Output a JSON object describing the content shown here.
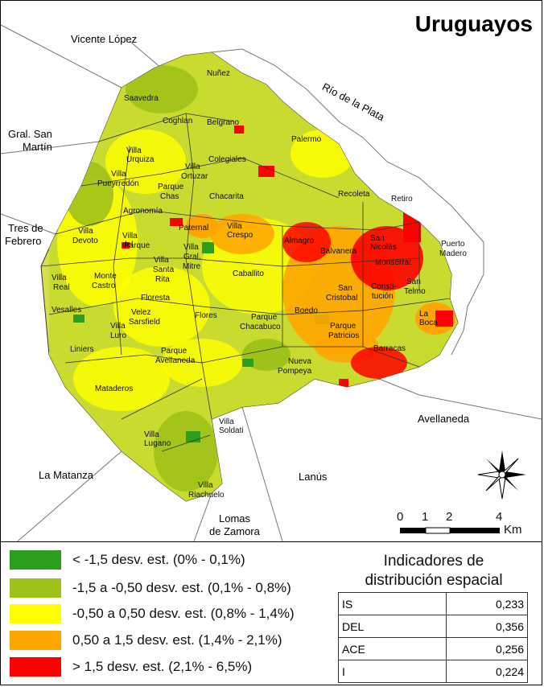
{
  "map": {
    "title": "Uruguayos",
    "neighbors": {
      "vicente_lopez": "Vicente López",
      "rio_plata": "Río de la Plata",
      "gral_san_martin_1": "Gral. San",
      "gral_san_martin_2": "Martín",
      "tres_febrero_1": "Tres de",
      "tres_febrero_2": "Febrero",
      "la_matanza": "La Matanza",
      "lanus": "Lanús",
      "avellaneda": "Avellaneda",
      "lomas_1": "Lomas",
      "lomas_2": "de Zamora"
    },
    "barrios": {
      "nunez": "Nuñez",
      "saavedra": "Saavedra",
      "coghlan": "Coghlan",
      "belgrano": "Belgrano",
      "villa_urquiza": "Villa Urquiza",
      "palermo": "Palermo",
      "villa_pueyrredon_1": "Villa",
      "villa_pueyrredon_2": "Pueyrredón",
      "villa_ortuzar_1": "Villa",
      "villa_ortuzar_2": "Ortuzar",
      "colegiales": "Colegiales",
      "parque_chas_1": "Parque",
      "parque_chas_2": "Chas",
      "chacarita": "Chacarita",
      "recoleta": "Recoleta",
      "retiro": "Retiro",
      "agronomia": "Agronomía",
      "paternal": "Paternal",
      "villa_crespo": "Villa Crespo",
      "villa_devoto_1": "Villa",
      "villa_devoto_2": "Devoto",
      "villa_del_parque_1": "Villa del",
      "villa_del_parque_2": "Parque",
      "villa_gral_mitre_1": "Villa",
      "villa_gral_mitre_2": "Gral.",
      "villa_gral_mitre_3": "Mitre",
      "almagro": "Almagro",
      "balvanera": "Balvanera",
      "san_nicolas": "San Nicolás",
      "puerto_madero_1": "Puerto",
      "puerto_madero_2": "Madero",
      "monserrat": "Monserrat",
      "villa_santa_rita_1": "Villa",
      "villa_santa_rita_2": "Santa",
      "villa_santa_rita_3": "Rita",
      "caballito": "Caballito",
      "villa_real_1": "Villa",
      "villa_real_2": "Real",
      "monte_castro_1": "Monte",
      "monte_castro_2": "Castro",
      "san_cristobal_1": "San",
      "san_cristobal_2": "Cristobal",
      "constitucion_1": "Consti-",
      "constitucion_2": "tución",
      "san_telmo_1": "San",
      "san_telmo_2": "Telmo",
      "floresta": "Floresta",
      "vesalles": "Vesalles",
      "velez_sarsfield_1": "Velez",
      "velez_sarsfield_2": "Sarsfield",
      "villa_luro_1": "Villa",
      "villa_luro_2": "Luro",
      "flores": "Flores",
      "parque_chacabuco_1": "Parque",
      "parque_chacabuco_2": "Chacabuco",
      "boedo": "Boedo",
      "parque_patricios_1": "Parque",
      "parque_patricios_2": "Patricios",
      "la_boca": "La Boca",
      "liniers": "Liniers",
      "parque_avellaneda_1": "Parque",
      "parque_avellaneda_2": "Avellaneda",
      "barracas": "Barracas",
      "nueva_pompeya_1": "Nueva",
      "nueva_pompeya_2": "Pompeya",
      "mataderos": "Mataderos",
      "villa_soldati": "Villa Soldati",
      "villa_lugano": "Villa Lugano",
      "villa_riachuelo_1": "Villa",
      "villa_riachuelo_2": "Riachuelo"
    },
    "scale": {
      "t0": "0",
      "t1": "1",
      "t2": "2",
      "t4": "4",
      "unit": "Km"
    }
  },
  "legend": {
    "items": [
      {
        "label": "< -1,5 desv. est. (0% - 0,1%)",
        "color": "#2e9e1e"
      },
      {
        "label": "-1,5 a -0,50 desv. est. (0,1% - 0,8%)",
        "color": "#9fc21a"
      },
      {
        "label": "-0,50 a 0,50 desv. est. (0,8% - 1,4%)",
        "color": "#ffff00"
      },
      {
        "label": "0,50 a 1,5 desv. est. (1,4% - 2,1%)",
        "color": "#ffa500"
      },
      {
        "label": "> 1,5 desv. est. (2,1% - 6,5%)",
        "color": "#ff0000"
      }
    ]
  },
  "indicators": {
    "title_line1": "Indicadores de",
    "title_line2": "distribución espacial",
    "rows": [
      {
        "name": "IS",
        "value": "0,233"
      },
      {
        "name": "DEL",
        "value": "0,356"
      },
      {
        "name": "ACE",
        "value": "0,256"
      },
      {
        "name": "I",
        "value": "0,224"
      }
    ]
  }
}
